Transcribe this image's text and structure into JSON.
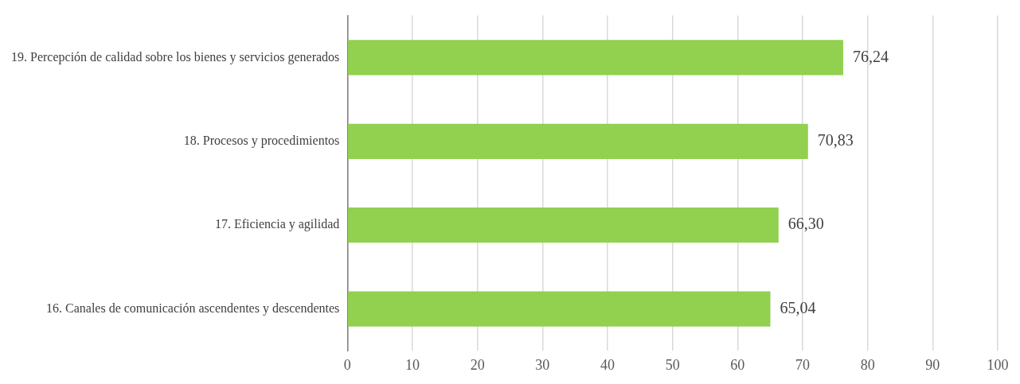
{
  "chart_data": {
    "type": "bar",
    "orientation": "horizontal",
    "categories": [
      "19. Percepción de calidad sobre los bienes y servicios generados",
      "18. Procesos y procedimientos",
      "17. Eficiencia y agilidad",
      "16. Canales de comunicación ascendentes y descendentes"
    ],
    "values": [
      76.24,
      70.83,
      66.3,
      65.04
    ],
    "value_labels": [
      "76,24",
      "70,83",
      "66,30",
      "65,04"
    ],
    "color": "#92d050",
    "xlim": [
      0,
      100
    ],
    "xticks": [
      0,
      10,
      20,
      30,
      40,
      50,
      60,
      70,
      80,
      90,
      100
    ],
    "grid": "x"
  }
}
